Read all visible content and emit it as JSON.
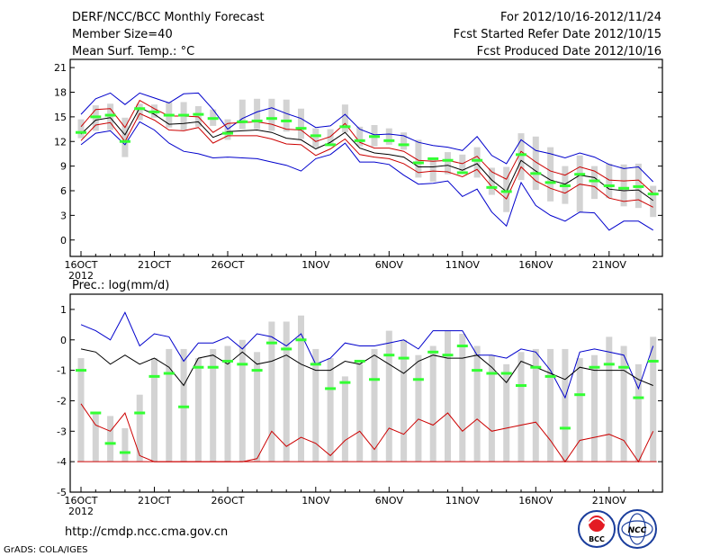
{
  "header": {
    "title": "DERF/NCC/BCC Monthly Forecast",
    "member_size": "Member Size=40",
    "variable": "Mean Surf. Temp.: °C",
    "period": "For 2012/10/16-2012/11/24",
    "fcst_started": "Fcst Started Refer Date 2012/10/15",
    "fcst_produced": "Fcst Produced Date 2012/10/16"
  },
  "footer": {
    "url": "http://cmdp.ncc.cma.gov.cn",
    "credit": "GrADS: COLA/IGES",
    "logo_left_text": "BCC",
    "logo_right_text": "NCC"
  },
  "colors": {
    "frame": "#000000",
    "box": "#d3d3d3",
    "median": "#33ff33",
    "ens_mean": "#000000",
    "envelope": "#0000cc",
    "std_band": "#cc0000"
  },
  "chart_data": [
    {
      "type": "line",
      "name": "temperature",
      "title": "Mean Surf. Temp.: °C",
      "xlabel": "",
      "ylabel": "°C",
      "ylim": [
        -2,
        22
      ],
      "yticks": [
        0,
        3,
        6,
        9,
        12,
        15,
        18,
        21
      ],
      "xticks": [
        {
          "day": 1,
          "label": "16OCT",
          "sub": "2012"
        },
        {
          "day": 6,
          "label": "21OCT"
        },
        {
          "day": 11,
          "label": "26OCT"
        },
        {
          "day": 17,
          "label": "1NOV"
        },
        {
          "day": 22,
          "label": "6NOV"
        },
        {
          "day": 27,
          "label": "11NOV"
        },
        {
          "day": 32,
          "label": "16NOV"
        },
        {
          "day": 37,
          "label": "21NOV"
        }
      ],
      "days": 40,
      "box_low": [
        12.4,
        13.3,
        13.4,
        10.1,
        14.6,
        14.9,
        13.7,
        13.4,
        13.8,
        13.9,
        12.2,
        13.5,
        13.5,
        13.3,
        13.2,
        12.3,
        11.3,
        11.5,
        13.1,
        11.4,
        11.4,
        11.6,
        11.0,
        7.6,
        7.1,
        8.0,
        8.4,
        7.6,
        5.5,
        3.4,
        7.3,
        6.1,
        4.7,
        4.4,
        3.4,
        5.0,
        5.1,
        4.1,
        3.9,
        2.8
      ],
      "box_high": [
        14.7,
        16.4,
        16.6,
        14.9,
        16.6,
        16.5,
        16.8,
        16.8,
        16.3,
        15.9,
        14.7,
        17.1,
        17.2,
        17.2,
        17.1,
        16.0,
        13.6,
        13.5,
        16.5,
        13.8,
        14.0,
        13.6,
        13.1,
        12.2,
        10.0,
        10.7,
        10.4,
        11.3,
        8.8,
        8.9,
        13.0,
        12.6,
        11.3,
        9.0,
        10.3,
        9.0,
        9.3,
        9.2,
        9.3,
        6.6
      ],
      "median": [
        13.1,
        15.0,
        15.2,
        12.0,
        16.0,
        15.6,
        15.2,
        15.2,
        15.3,
        14.8,
        13.0,
        14.4,
        14.5,
        14.8,
        14.5,
        13.6,
        12.7,
        11.6,
        13.8,
        12.1,
        12.6,
        12.1,
        11.6,
        9.4,
        9.9,
        9.7,
        8.2,
        9.7,
        6.4,
        5.9,
        10.4,
        8.1,
        7.0,
        6.6,
        8.0,
        7.2,
        6.6,
        6.3,
        6.5,
        5.6
      ],
      "series": [
        {
          "name": "ensemble max",
          "color": "#0000cc",
          "values": [
            15.3,
            17.2,
            17.9,
            16.5,
            17.9,
            17.3,
            16.7,
            17.8,
            17.9,
            15.9,
            13.5,
            14.8,
            15.6,
            16.1,
            15.4,
            14.8,
            13.7,
            13.9,
            15.3,
            13.5,
            12.8,
            12.9,
            12.7,
            11.9,
            11.5,
            11.3,
            10.9,
            12.6,
            10.3,
            9.3,
            12.2,
            10.9,
            10.5,
            10.0,
            10.6,
            10.1,
            9.2,
            8.7,
            8.9,
            7.1
          ]
        },
        {
          "name": "mean + std",
          "color": "#cc0000",
          "values": [
            13.8,
            15.9,
            16.0,
            13.7,
            17.0,
            16.0,
            15.1,
            15.1,
            15.0,
            13.1,
            14.2,
            14.3,
            14.4,
            14.1,
            13.5,
            13.4,
            12.0,
            12.6,
            14.2,
            11.9,
            11.2,
            11.2,
            10.8,
            9.7,
            9.6,
            9.7,
            9.3,
            10.2,
            8.3,
            7.4,
            10.8,
            9.5,
            8.4,
            7.9,
            8.9,
            8.4,
            7.3,
            7.2,
            7.3,
            5.7
          ]
        },
        {
          "name": "ensemble mean",
          "color": "#000000",
          "values": [
            12.9,
            14.6,
            14.9,
            12.8,
            16.1,
            15.3,
            14.1,
            14.2,
            14.4,
            12.5,
            13.2,
            13.3,
            13.4,
            13.1,
            12.4,
            12.2,
            11.1,
            11.9,
            13.1,
            11.2,
            10.6,
            10.4,
            10.1,
            8.9,
            8.9,
            9.1,
            8.5,
            9.3,
            7.3,
            5.9,
            9.7,
            8.4,
            7.3,
            6.8,
            7.9,
            7.6,
            6.2,
            6.0,
            6.1,
            4.8
          ]
        },
        {
          "name": "mean - std",
          "color": "#cc0000",
          "values": [
            12.1,
            14.0,
            14.3,
            12.0,
            15.4,
            14.6,
            13.4,
            13.3,
            13.7,
            11.8,
            12.7,
            12.7,
            12.7,
            12.3,
            11.7,
            11.6,
            10.3,
            11.1,
            12.3,
            10.4,
            10.1,
            9.9,
            9.3,
            8.2,
            8.4,
            8.3,
            7.7,
            8.6,
            6.5,
            5.0,
            8.9,
            7.2,
            6.3,
            5.7,
            6.8,
            6.5,
            5.1,
            4.7,
            4.9,
            4.0
          ]
        },
        {
          "name": "ensemble min",
          "color": "#0000cc",
          "values": [
            11.6,
            13.0,
            13.3,
            11.6,
            14.4,
            13.4,
            11.8,
            10.8,
            10.5,
            10.0,
            10.1,
            10.0,
            9.9,
            9.5,
            9.1,
            8.4,
            9.9,
            10.4,
            11.8,
            9.5,
            9.5,
            9.2,
            7.9,
            6.8,
            6.9,
            7.2,
            5.3,
            6.2,
            3.4,
            1.7,
            7.0,
            4.2,
            3.0,
            2.3,
            3.4,
            3.3,
            1.2,
            2.3,
            2.3,
            1.2
          ]
        }
      ]
    },
    {
      "type": "line",
      "name": "precipitation",
      "title": "Prec.: log(mm/d)",
      "xlabel": "",
      "ylabel": "log(mm/d)",
      "ylim": [
        -5,
        1.5
      ],
      "yticks": [
        -5,
        -4,
        -3,
        -2,
        -1,
        0,
        1
      ],
      "xticks": [
        {
          "day": 1,
          "label": "16OCT",
          "sub": "2012"
        },
        {
          "day": 6,
          "label": "21OCT"
        },
        {
          "day": 11,
          "label": "26OCT"
        },
        {
          "day": 17,
          "label": "1NOV"
        },
        {
          "day": 22,
          "label": "6NOV"
        },
        {
          "day": 27,
          "label": "11NOV"
        },
        {
          "day": 32,
          "label": "16NOV"
        },
        {
          "day": 37,
          "label": "21NOV"
        }
      ],
      "days": 40,
      "bar_base": -4,
      "box_high": [
        -0.6,
        -2.4,
        -2.5,
        -2.9,
        -1.8,
        -0.6,
        -0.3,
        -0.3,
        -0.6,
        -0.3,
        -0.2,
        0.0,
        -0.4,
        0.6,
        0.6,
        0.8,
        -0.3,
        -0.6,
        -1.2,
        -0.8,
        -0.3,
        0.3,
        0.0,
        -0.5,
        -0.2,
        0.3,
        0.2,
        -0.2,
        -0.5,
        -0.8,
        -0.4,
        -0.3,
        -0.3,
        -0.3,
        -0.6,
        -0.5,
        0.1,
        -0.2,
        -0.8,
        0.1
      ],
      "median": [
        -1.0,
        -2.4,
        -3.4,
        -3.7,
        -2.4,
        -1.2,
        -1.1,
        -2.2,
        -0.9,
        -0.9,
        -0.7,
        -0.8,
        -1.0,
        -0.1,
        -0.3,
        0.0,
        -0.8,
        -1.6,
        -1.4,
        -0.7,
        -1.3,
        -0.5,
        -0.6,
        -1.3,
        -0.4,
        -0.5,
        -0.2,
        -1.0,
        -1.1,
        -1.1,
        -1.5,
        -0.9,
        -1.2,
        -2.9,
        -1.8,
        -0.9,
        -0.8,
        -0.9,
        -1.9,
        -0.7
      ],
      "series": [
        {
          "name": "ensemble max",
          "color": "#0000cc",
          "values": [
            0.5,
            0.3,
            0.0,
            0.9,
            -0.2,
            0.2,
            0.1,
            -0.7,
            -0.1,
            -0.1,
            0.1,
            -0.3,
            0.2,
            0.1,
            -0.2,
            0.2,
            -0.8,
            -0.6,
            -0.1,
            -0.2,
            -0.2,
            -0.1,
            0.0,
            -0.3,
            0.3,
            0.3,
            0.3,
            -0.5,
            -0.5,
            -0.6,
            -0.3,
            -0.4,
            -1.0,
            -1.9,
            -0.4,
            -0.3,
            -0.4,
            -0.5,
            -1.6,
            -0.2
          ]
        },
        {
          "name": "ensemble mean",
          "color": "#000000",
          "values": [
            -0.3,
            -0.4,
            -0.8,
            -0.5,
            -0.8,
            -0.6,
            -0.9,
            -1.5,
            -0.6,
            -0.5,
            -0.8,
            -0.4,
            -0.8,
            -0.7,
            -0.5,
            -0.8,
            -1.0,
            -1.0,
            -0.7,
            -0.8,
            -0.5,
            -0.8,
            -1.1,
            -0.7,
            -0.5,
            -0.6,
            -0.6,
            -0.5,
            -0.9,
            -1.4,
            -0.7,
            -0.9,
            -1.1,
            -1.3,
            -0.9,
            -1.0,
            -1.0,
            -1.0,
            -1.3,
            -1.5
          ]
        },
        {
          "name": "mean - std",
          "color": "#cc0000",
          "values": [
            -2.1,
            -2.8,
            -3.0,
            -2.4,
            -3.8,
            -4.0,
            -4.0,
            -4.0,
            -4.0,
            -4.0,
            -4.0,
            -4.0,
            -3.9,
            -3.0,
            -3.5,
            -3.2,
            -3.4,
            -3.8,
            -3.3,
            -3.0,
            -3.6,
            -2.9,
            -3.1,
            -2.6,
            -2.8,
            -2.4,
            -3.0,
            -2.6,
            -3.0,
            -2.9,
            -2.8,
            -2.7,
            -3.3,
            -4.0,
            -3.3,
            -3.2,
            -3.1,
            -3.3,
            -4.0,
            -3.0
          ]
        }
      ]
    }
  ]
}
